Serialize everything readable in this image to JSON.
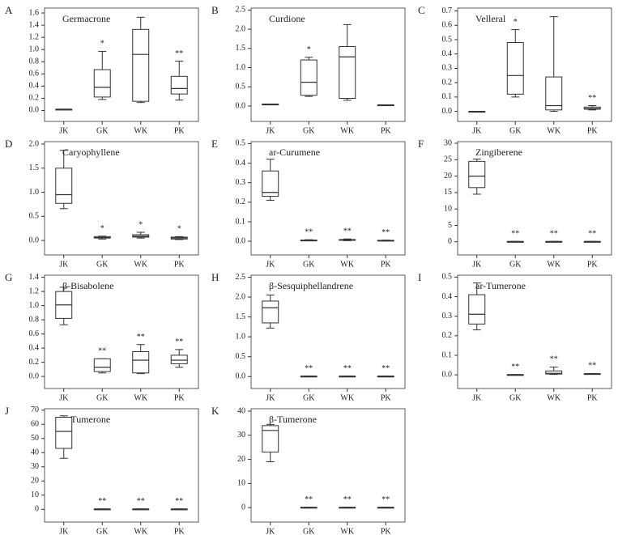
{
  "chart_data": [
    {
      "type": "box",
      "panel": "A",
      "title": "Germacrone",
      "categories": [
        "JK",
        "GK",
        "WK",
        "PK"
      ],
      "min": [
        0.02,
        0.18,
        0.13,
        0.17
      ],
      "q1": [
        0.02,
        0.22,
        0.15,
        0.27
      ],
      "median": [
        0.02,
        0.38,
        0.92,
        0.36
      ],
      "q3": [
        0.02,
        0.67,
        1.33,
        0.56
      ],
      "max": [
        0.02,
        0.97,
        1.53,
        0.81
      ],
      "significance": [
        null,
        "*",
        null,
        "**"
      ],
      "ylim": [
        -0.18,
        1.68
      ],
      "yticks": [
        {
          "value": 0,
          "label": "0.0"
        },
        0.2,
        0.4,
        0.6,
        0.8,
        {
          "value": 1,
          "label": "1.0"
        },
        1.2,
        1.4,
        1.6
      ]
    },
    {
      "type": "box",
      "panel": "B",
      "title": "Curdione",
      "categories": [
        "JK",
        "GK",
        "WK",
        "PK"
      ],
      "min": [
        0.05,
        0.25,
        0.15,
        0.03
      ],
      "q1": [
        0.05,
        0.28,
        0.2,
        0.03
      ],
      "median": [
        0.05,
        0.62,
        1.28,
        0.03
      ],
      "q3": [
        0.05,
        1.2,
        1.55,
        0.03
      ],
      "max": [
        0.05,
        1.27,
        2.12,
        0.03
      ],
      "significance": [
        null,
        "*",
        null,
        null
      ],
      "ylim": [
        -0.4,
        2.55
      ],
      "yticks": [
        {
          "value": 0,
          "label": "0.0"
        },
        0.5,
        {
          "value": 1,
          "label": "1.0"
        },
        1.5,
        {
          "value": 2,
          "label": "2.0"
        },
        2.5
      ]
    },
    {
      "type": "box",
      "panel": "C",
      "title": "Velleral",
      "categories": [
        "JK",
        "GK",
        "WK",
        "PK"
      ],
      "min": [
        0,
        0.1,
        0,
        0.01
      ],
      "q1": [
        0,
        0.12,
        0.01,
        0.015
      ],
      "median": [
        0,
        0.25,
        0.04,
        0.02
      ],
      "q3": [
        0,
        0.48,
        0.24,
        0.03
      ],
      "max": [
        0,
        0.57,
        0.66,
        0.04
      ],
      "significance": [
        null,
        "*",
        null,
        "**"
      ],
      "ylim": [
        -0.07,
        0.72
      ],
      "yticks": [
        {
          "value": 0,
          "label": "0.0"
        },
        0.1,
        0.2,
        0.3,
        0.4,
        0.5,
        0.6,
        0.7
      ]
    },
    {
      "type": "box",
      "panel": "D",
      "title": "Caryophyllene",
      "categories": [
        "JK",
        "GK",
        "WK",
        "PK"
      ],
      "min": [
        0.66,
        0.03,
        0.05,
        0.02
      ],
      "q1": [
        0.77,
        0.05,
        0.07,
        0.03
      ],
      "median": [
        0.95,
        0.06,
        0.09,
        0.05
      ],
      "q3": [
        1.5,
        0.08,
        0.12,
        0.07
      ],
      "max": [
        1.87,
        0.09,
        0.17,
        0.08
      ],
      "significance": [
        null,
        "*",
        "*",
        "*"
      ],
      "ylim": [
        -0.3,
        2.05
      ],
      "yticks": [
        {
          "value": 0,
          "label": "0.0"
        },
        0.5,
        {
          "value": 1,
          "label": "1.0"
        },
        1.5,
        {
          "value": 2,
          "label": "2.0"
        }
      ]
    },
    {
      "type": "box",
      "panel": "E",
      "title": "ar-Curumene",
      "categories": [
        "JK",
        "GK",
        "WK",
        "PK"
      ],
      "min": [
        0.21,
        0.003,
        0.003,
        0.002
      ],
      "q1": [
        0.23,
        0.004,
        0.005,
        0.003
      ],
      "median": [
        0.25,
        0.005,
        0.007,
        0.004
      ],
      "q3": [
        0.36,
        0.006,
        0.009,
        0.005
      ],
      "max": [
        0.42,
        0.008,
        0.012,
        0.006
      ],
      "significance": [
        null,
        "**",
        "**",
        "**"
      ],
      "ylim": [
        -0.07,
        0.51
      ],
      "yticks": [
        {
          "value": 0,
          "label": "0.0"
        },
        0.1,
        0.2,
        0.3,
        0.4,
        0.5
      ]
    },
    {
      "type": "box",
      "panel": "F",
      "title": "Zingiberene",
      "categories": [
        "JK",
        "GK",
        "WK",
        "PK"
      ],
      "min": [
        14.5,
        0.1,
        0.1,
        0.1
      ],
      "q1": [
        16.5,
        0.1,
        0.1,
        0.1
      ],
      "median": [
        20,
        0.1,
        0.1,
        0.1
      ],
      "q3": [
        24.5,
        0.1,
        0.1,
        0.1
      ],
      "max": [
        25.2,
        0.1,
        0.1,
        0.1
      ],
      "significance": [
        null,
        "**",
        "**",
        "**"
      ],
      "ylim": [
        -4,
        30.5
      ],
      "yticks": [
        0,
        5,
        10,
        15,
        20,
        25,
        30
      ]
    },
    {
      "type": "box",
      "panel": "G",
      "title": "β-Bisabolene",
      "categories": [
        "JK",
        "GK",
        "WK",
        "PK"
      ],
      "min": [
        0.73,
        0.05,
        0.04,
        0.13
      ],
      "q1": [
        0.82,
        0.07,
        0.05,
        0.18
      ],
      "median": [
        1.01,
        0.13,
        0.23,
        0.23
      ],
      "q3": [
        1.2,
        0.25,
        0.35,
        0.3
      ],
      "max": [
        1.26,
        0.25,
        0.45,
        0.38
      ],
      "significance": [
        null,
        "**",
        "**",
        "**"
      ],
      "ylim": [
        -0.17,
        1.43
      ],
      "yticks": [
        {
          "value": 0,
          "label": "0.0"
        },
        0.2,
        0.4,
        0.6,
        0.8,
        {
          "value": 1,
          "label": "1.0"
        },
        1.2,
        1.4
      ]
    },
    {
      "type": "box",
      "panel": "H",
      "title": "β-Sesquiphellandrene",
      "categories": [
        "JK",
        "GK",
        "WK",
        "PK"
      ],
      "min": [
        1.22,
        0.01,
        0.01,
        0.01
      ],
      "q1": [
        1.35,
        0.01,
        0.01,
        0.01
      ],
      "median": [
        1.73,
        0.01,
        0.01,
        0.01
      ],
      "q3": [
        1.9,
        0.01,
        0.01,
        0.01
      ],
      "max": [
        2.05,
        0.01,
        0.01,
        0.01
      ],
      "significance": [
        null,
        "**",
        "**",
        "**"
      ],
      "ylim": [
        -0.3,
        2.55
      ],
      "yticks": [
        {
          "value": 0,
          "label": "0.0"
        },
        0.5,
        {
          "value": 1,
          "label": "1.0"
        },
        1.5,
        {
          "value": 2,
          "label": "2.0"
        },
        2.5
      ]
    },
    {
      "type": "box",
      "panel": "I",
      "title": "ar-Tumerone",
      "categories": [
        "JK",
        "GK",
        "WK",
        "PK"
      ],
      "min": [
        0.23,
        0.001,
        0.002,
        0.003
      ],
      "q1": [
        0.26,
        0.001,
        0.004,
        0.004
      ],
      "median": [
        0.31,
        0.001,
        0.008,
        0.005
      ],
      "q3": [
        0.41,
        0.001,
        0.02,
        0.006
      ],
      "max": [
        0.47,
        0.001,
        0.04,
        0.007
      ],
      "significance": [
        null,
        "**",
        "**",
        "**"
      ],
      "ylim": [
        -0.07,
        0.51
      ],
      "yticks": [
        {
          "value": 0,
          "label": "0.0"
        },
        0.1,
        0.2,
        0.3,
        0.4,
        0.5
      ]
    },
    {
      "type": "box",
      "panel": "J",
      "title": "α-Tumerone",
      "categories": [
        "JK",
        "GK",
        "WK",
        "PK"
      ],
      "min": [
        36,
        0.2,
        0.2,
        0.2
      ],
      "q1": [
        43,
        0.2,
        0.2,
        0.2
      ],
      "median": [
        55,
        0.2,
        0.2,
        0.2
      ],
      "q3": [
        65,
        0.2,
        0.2,
        0.2
      ],
      "max": [
        66,
        0.2,
        0.2,
        0.2
      ],
      "significance": [
        null,
        "**",
        "**",
        "**"
      ],
      "ylim": [
        -9,
        71
      ],
      "yticks": [
        0,
        10,
        20,
        30,
        40,
        50,
        60,
        70
      ]
    },
    {
      "type": "box",
      "panel": "K",
      "title": "β-Tumerone",
      "categories": [
        "JK",
        "GK",
        "WK",
        "PK"
      ],
      "min": [
        19,
        0.1,
        0.1,
        0.1
      ],
      "q1": [
        23,
        0.1,
        0.1,
        0.1
      ],
      "median": [
        32,
        0.1,
        0.1,
        0.1
      ],
      "q3": [
        34,
        0.1,
        0.1,
        0.1
      ],
      "max": [
        34.5,
        0.1,
        0.1,
        0.1
      ],
      "significance": [
        null,
        "**",
        "**",
        "**"
      ],
      "ylim": [
        -6,
        41
      ],
      "yticks": [
        0,
        10,
        20,
        30,
        40
      ]
    }
  ]
}
